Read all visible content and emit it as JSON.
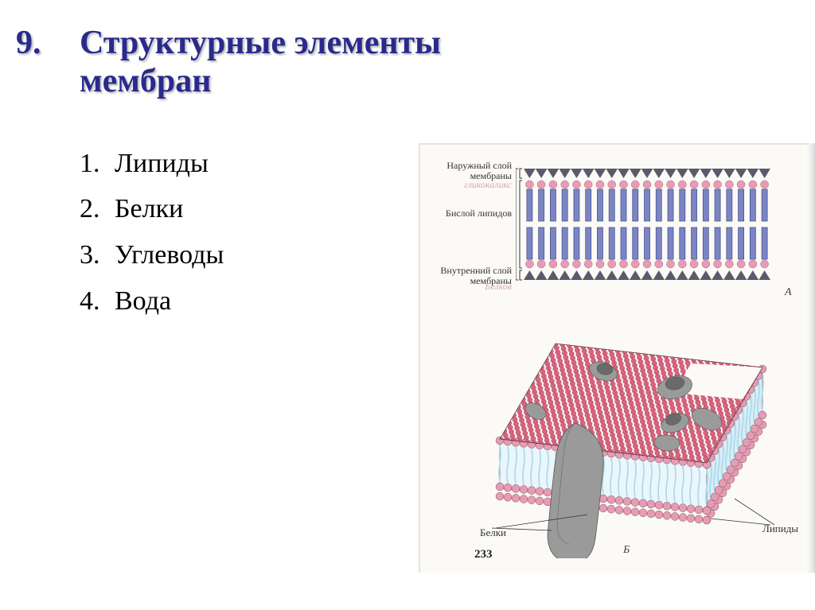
{
  "title": {
    "number": "9.",
    "line1": "Структурные элементы",
    "line2": "мембран",
    "color": "#2a2a8c",
    "fontsize": 42
  },
  "list": [
    {
      "num": "1.",
      "text": "Липиды"
    },
    {
      "num": "2.",
      "text": "Белки"
    },
    {
      "num": "3.",
      "text": "Углеводы"
    },
    {
      "num": "4.",
      "text": "Вода"
    }
  ],
  "schematic": {
    "labels": {
      "outer": "Наружный слой мембраны",
      "bilayer": "Бислой липидов",
      "inner": "Внутренний слой мембраны",
      "hand1": "гликокаликс",
      "hand2": "Белков"
    },
    "fig_letter": "А",
    "colors": {
      "triangle": "#5a5a6a",
      "head": "#e89bb5",
      "tail": "#7b85c4",
      "tail_stroke": "#4a5490",
      "bracket": "#333333"
    },
    "lipid_count": 21
  },
  "threeD": {
    "labels": {
      "proteins": "Белки",
      "lipids": "Липиды"
    },
    "fig_letter": "Б",
    "colors": {
      "head": "#d9637e",
      "head_light": "#e89bb5",
      "tail": "#a8d8e8",
      "protein": "#9a9a9a",
      "protein_dark": "#6a6a6a",
      "outline": "#5a3a3a"
    }
  },
  "pagenum": "233"
}
